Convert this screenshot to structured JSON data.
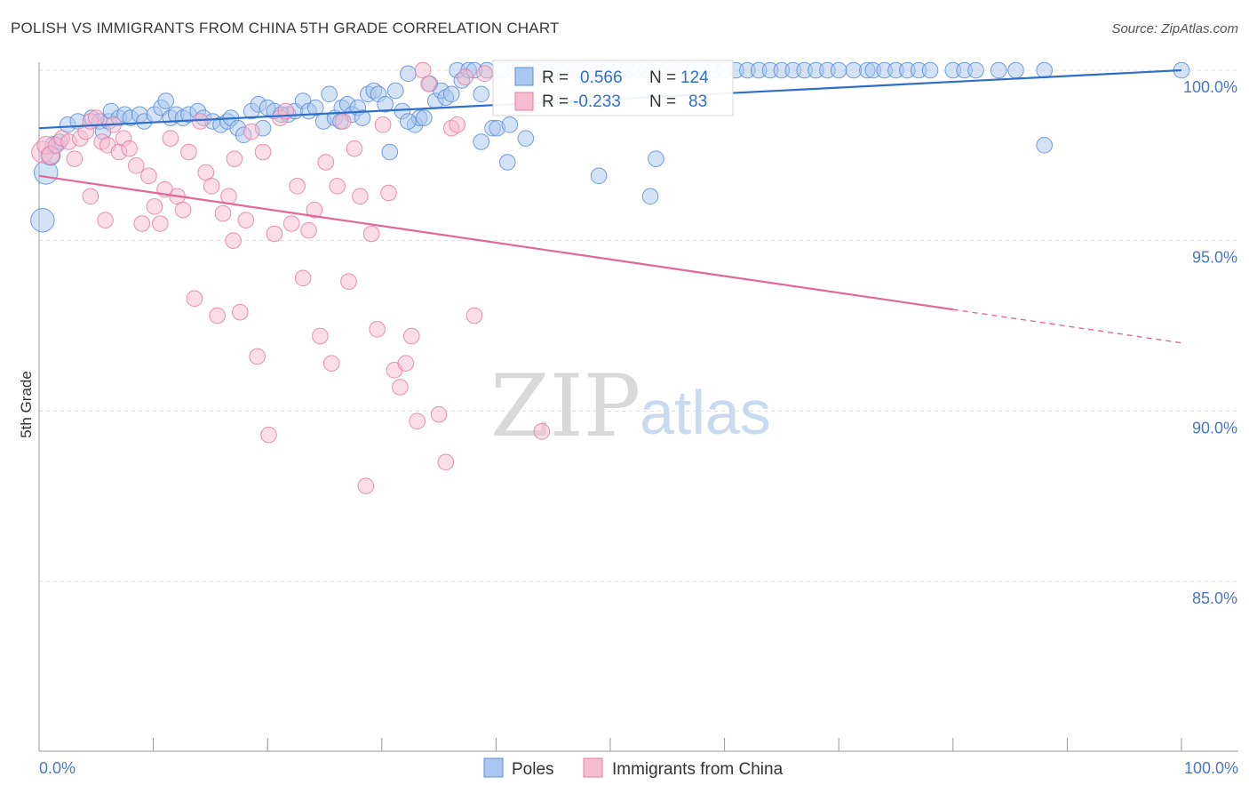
{
  "header": {
    "title": "POLISH VS IMMIGRANTS FROM CHINA 5TH GRADE CORRELATION CHART",
    "source": "Source: ZipAtlas.com"
  },
  "watermark": {
    "zip": "ZIP",
    "atlas": "atlas"
  },
  "colors": {
    "blue": "#5b8fd8",
    "blue_fill": "#a9c6ee",
    "blue_line": "#2f6fcc",
    "pink": "#e57fa4",
    "pink_fill": "#f5bcd0",
    "pink_line": "#e2679a",
    "tick_label": "#4a78c2",
    "grid": "#dddddd"
  },
  "chart_data": {
    "type": "scatter",
    "title": "POLISH VS IMMIGRANTS FROM CHINA 5TH GRADE CORRELATION CHART",
    "xlabel": "",
    "ylabel": "5th Grade",
    "xlim": [
      0,
      100
    ],
    "ylim": [
      80.5,
      100.8
    ],
    "x_tick_labels": [
      "0.0%",
      "100.0%"
    ],
    "y_ticks": [
      {
        "value": 100,
        "label": "100.0%"
      },
      {
        "value": 95,
        "label": "95.0%"
      },
      {
        "value": 90,
        "label": "90.0%"
      },
      {
        "value": 85,
        "label": "85.0%"
      }
    ],
    "legend": {
      "position": "top-center",
      "rows": [
        {
          "r_label": "R = ",
          "r_value": "0.566",
          "n_label": "N = ",
          "n_value": "124"
        },
        {
          "r_label": "R = ",
          "r_value": "-0.233",
          "n_label": "N = ",
          "n_value": "83"
        }
      ]
    },
    "bottom_legend": [
      "Poles",
      "Immigrants from China"
    ],
    "series": [
      {
        "name": "Poles",
        "color": "#5b8fd8",
        "R": 0.566,
        "N": 124,
        "trend": {
          "x0": 0,
          "y0": 98.3,
          "x1": 100,
          "y1": 100.0,
          "solid_to": 100
        },
        "points": [
          [
            0.3,
            95.6,
            12
          ],
          [
            0.6,
            97.0,
            12
          ],
          [
            1.0,
            97.5,
            10
          ],
          [
            1.3,
            97.8,
            9
          ],
          [
            1.8,
            97.9,
            8
          ],
          [
            2.5,
            98.4,
            8
          ],
          [
            3.4,
            98.5,
            8
          ],
          [
            4.6,
            98.6,
            8
          ],
          [
            5.3,
            98.5,
            8
          ],
          [
            5.6,
            98.2,
            8
          ],
          [
            6.1,
            98.5,
            8
          ],
          [
            6.3,
            98.8,
            8
          ],
          [
            7.0,
            98.6,
            8
          ],
          [
            7.5,
            98.7,
            8
          ],
          [
            8.0,
            98.6,
            8
          ],
          [
            8.8,
            98.7,
            8
          ],
          [
            9.2,
            98.5,
            8
          ],
          [
            10.1,
            98.7,
            8
          ],
          [
            10.7,
            98.9,
            8
          ],
          [
            11.1,
            99.1,
            8
          ],
          [
            11.5,
            98.6,
            8
          ],
          [
            12.0,
            98.7,
            8
          ],
          [
            12.6,
            98.6,
            8
          ],
          [
            13.1,
            98.7,
            8
          ],
          [
            13.9,
            98.8,
            8
          ],
          [
            14.4,
            98.6,
            8
          ],
          [
            15.2,
            98.5,
            8
          ],
          [
            15.9,
            98.4,
            8
          ],
          [
            16.5,
            98.5,
            8
          ],
          [
            16.8,
            98.6,
            8
          ],
          [
            17.4,
            98.3,
            8
          ],
          [
            17.9,
            98.1,
            8
          ],
          [
            18.6,
            98.8,
            8
          ],
          [
            19.2,
            99.0,
            8
          ],
          [
            19.6,
            98.3,
            8
          ],
          [
            20.0,
            98.9,
            8
          ],
          [
            20.6,
            98.8,
            8
          ],
          [
            21.2,
            98.7,
            8
          ],
          [
            21.8,
            98.7,
            8
          ],
          [
            22.4,
            98.8,
            8
          ],
          [
            23.1,
            99.1,
            8
          ],
          [
            23.6,
            98.8,
            8
          ],
          [
            24.2,
            98.9,
            8
          ],
          [
            24.9,
            98.5,
            8
          ],
          [
            25.4,
            99.3,
            8
          ],
          [
            25.9,
            98.6,
            8
          ],
          [
            26.5,
            98.9,
            8
          ],
          [
            27.0,
            99.0,
            8
          ],
          [
            27.4,
            98.7,
            8
          ],
          [
            27.9,
            98.9,
            8
          ],
          [
            28.3,
            98.6,
            8
          ],
          [
            28.8,
            99.3,
            8
          ],
          [
            29.3,
            99.4,
            8
          ],
          [
            29.7,
            99.3,
            8
          ],
          [
            30.3,
            99.0,
            8
          ],
          [
            30.7,
            97.6,
            8
          ],
          [
            31.2,
            99.4,
            8
          ],
          [
            31.8,
            98.8,
            8
          ],
          [
            32.3,
            99.9,
            8
          ],
          [
            32.9,
            98.4,
            8
          ],
          [
            33.3,
            98.6,
            8
          ],
          [
            33.7,
            98.6,
            8
          ],
          [
            34.2,
            99.6,
            8
          ],
          [
            34.7,
            99.1,
            8
          ],
          [
            35.2,
            99.4,
            8
          ],
          [
            35.6,
            99.2,
            8
          ],
          [
            36.1,
            99.3,
            8
          ],
          [
            36.6,
            100.0,
            8
          ],
          [
            37.0,
            99.7,
            8
          ],
          [
            37.6,
            100.0,
            8
          ],
          [
            38.1,
            100.0,
            8
          ],
          [
            38.7,
            99.3,
            8
          ],
          [
            39.2,
            100.0,
            8
          ],
          [
            39.7,
            98.3,
            8
          ],
          [
            40.1,
            98.3,
            8
          ],
          [
            40.6,
            100.0,
            8
          ],
          [
            41.2,
            98.4,
            8
          ],
          [
            41.6,
            100.0,
            8
          ],
          [
            42.1,
            100.0,
            8
          ],
          [
            42.6,
            98.0,
            8
          ],
          [
            43.4,
            100.0,
            8
          ],
          [
            44.2,
            100.0,
            8
          ],
          [
            44.8,
            100.0,
            8
          ],
          [
            45.5,
            100.0,
            8
          ],
          [
            46.2,
            100.0,
            8
          ],
          [
            47.0,
            100.0,
            8
          ],
          [
            47.6,
            100.0,
            8
          ],
          [
            48.3,
            100.0,
            8
          ],
          [
            49.0,
            100.0,
            8
          ],
          [
            49.8,
            100.0,
            8
          ],
          [
            50.8,
            100.0,
            8
          ],
          [
            51.5,
            100.0,
            8
          ],
          [
            52.4,
            100.0,
            8
          ],
          [
            53.2,
            100.0,
            8
          ],
          [
            54.0,
            97.4,
            8
          ],
          [
            55.0,
            100.0,
            8
          ],
          [
            55.8,
            100.0,
            8
          ],
          [
            56.6,
            100.0,
            8
          ],
          [
            57.4,
            100.0,
            8
          ],
          [
            58.1,
            100.0,
            8
          ],
          [
            59.0,
            100.0,
            8
          ],
          [
            60.0,
            100.0,
            8
          ],
          [
            61.0,
            100.0,
            8
          ],
          [
            62.0,
            100.0,
            8
          ],
          [
            63.0,
            100.0,
            8
          ],
          [
            64.0,
            100.0,
            8
          ],
          [
            65.0,
            100.0,
            8
          ],
          [
            66.0,
            100.0,
            8
          ],
          [
            67.0,
            100.0,
            8
          ],
          [
            68.0,
            100.0,
            8
          ],
          [
            69.0,
            100.0,
            8
          ],
          [
            70.0,
            100.0,
            8
          ],
          [
            71.3,
            100.0,
            8
          ],
          [
            72.5,
            100.0,
            8
          ],
          [
            73.0,
            100.0,
            8
          ],
          [
            74.0,
            100.0,
            8
          ],
          [
            75.0,
            100.0,
            8
          ],
          [
            76.0,
            100.0,
            8
          ],
          [
            77.0,
            100.0,
            8
          ],
          [
            78.0,
            100.0,
            8
          ],
          [
            80.0,
            100.0,
            8
          ],
          [
            81.0,
            100.0,
            8
          ],
          [
            82.0,
            100.0,
            8
          ],
          [
            84.0,
            100.0,
            8
          ],
          [
            85.5,
            100.0,
            8
          ],
          [
            88.0,
            100.0,
            8
          ],
          [
            100.0,
            100.0,
            8
          ],
          [
            88.0,
            97.8,
            8
          ],
          [
            49.0,
            96.9,
            8
          ],
          [
            53.5,
            96.3,
            8
          ],
          [
            41.0,
            97.3,
            8
          ],
          [
            38.7,
            97.9,
            8
          ],
          [
            26.4,
            98.5,
            8
          ],
          [
            32.3,
            98.5,
            8
          ]
        ]
      },
      {
        "name": "Immigrants from China",
        "color": "#e57fa4",
        "R": -0.233,
        "N": 83,
        "trend": {
          "x0": 0,
          "y0": 96.9,
          "x1": 100,
          "y1": 92.0,
          "solid_to": 80
        },
        "points": [
          [
            0.3,
            97.6,
            11
          ],
          [
            0.6,
            97.8,
            9
          ],
          [
            1.0,
            97.5,
            9
          ],
          [
            1.5,
            97.8,
            8
          ],
          [
            2.0,
            98.0,
            8
          ],
          [
            2.6,
            97.9,
            8
          ],
          [
            3.1,
            97.4,
            8
          ],
          [
            3.6,
            98.0,
            8
          ],
          [
            4.1,
            98.2,
            8
          ],
          [
            4.5,
            98.5,
            8
          ],
          [
            5.0,
            98.6,
            8
          ],
          [
            5.5,
            97.9,
            8
          ],
          [
            6.0,
            97.8,
            8
          ],
          [
            6.5,
            98.4,
            8
          ],
          [
            7.0,
            97.6,
            8
          ],
          [
            7.4,
            98.0,
            8
          ],
          [
            7.9,
            97.7,
            8
          ],
          [
            8.5,
            97.2,
            8
          ],
          [
            9.0,
            95.5,
            8
          ],
          [
            9.6,
            96.9,
            8
          ],
          [
            10.1,
            96.0,
            8
          ],
          [
            10.6,
            95.5,
            8
          ],
          [
            11.0,
            96.5,
            8
          ],
          [
            11.5,
            98.0,
            8
          ],
          [
            12.1,
            96.3,
            8
          ],
          [
            12.6,
            95.9,
            8
          ],
          [
            13.1,
            97.6,
            8
          ],
          [
            13.6,
            93.3,
            8
          ],
          [
            14.1,
            98.5,
            8
          ],
          [
            14.6,
            97.0,
            8
          ],
          [
            15.1,
            96.6,
            8
          ],
          [
            15.6,
            92.8,
            8
          ],
          [
            16.1,
            95.8,
            8
          ],
          [
            16.6,
            96.3,
            8
          ],
          [
            17.1,
            97.4,
            8
          ],
          [
            17.6,
            92.9,
            8
          ],
          [
            18.1,
            95.6,
            8
          ],
          [
            18.6,
            98.2,
            8
          ],
          [
            19.1,
            91.6,
            8
          ],
          [
            19.6,
            97.6,
            8
          ],
          [
            20.1,
            89.3,
            8
          ],
          [
            20.6,
            95.2,
            8
          ],
          [
            21.1,
            98.6,
            8
          ],
          [
            21.6,
            98.8,
            8
          ],
          [
            22.1,
            95.5,
            8
          ],
          [
            22.6,
            96.6,
            8
          ],
          [
            23.1,
            93.9,
            8
          ],
          [
            23.6,
            95.3,
            8
          ],
          [
            24.1,
            95.9,
            8
          ],
          [
            24.6,
            92.2,
            8
          ],
          [
            25.1,
            97.3,
            8
          ],
          [
            25.6,
            91.4,
            8
          ],
          [
            26.1,
            96.6,
            8
          ],
          [
            26.6,
            98.5,
            8
          ],
          [
            27.1,
            93.8,
            8
          ],
          [
            27.6,
            97.7,
            8
          ],
          [
            28.1,
            96.3,
            8
          ],
          [
            28.6,
            87.8,
            8
          ],
          [
            29.1,
            95.2,
            8
          ],
          [
            29.6,
            92.4,
            8
          ],
          [
            30.1,
            98.4,
            8
          ],
          [
            30.6,
            96.4,
            8
          ],
          [
            31.1,
            91.2,
            8
          ],
          [
            31.6,
            90.7,
            8
          ],
          [
            32.1,
            91.4,
            8
          ],
          [
            32.6,
            92.2,
            8
          ],
          [
            33.1,
            89.7,
            8
          ],
          [
            33.6,
            100.0,
            8
          ],
          [
            34.1,
            99.6,
            8
          ],
          [
            35.0,
            89.9,
            8
          ],
          [
            35.6,
            88.5,
            8
          ],
          [
            36.1,
            98.3,
            8
          ],
          [
            36.6,
            98.4,
            8
          ],
          [
            37.3,
            99.8,
            8
          ],
          [
            38.1,
            92.8,
            8
          ],
          [
            39.0,
            99.9,
            8
          ],
          [
            44.0,
            89.4,
            8
          ],
          [
            47.0,
            100.0,
            8
          ],
          [
            49.0,
            99.9,
            8
          ],
          [
            56.0,
            100.0,
            8
          ],
          [
            5.8,
            95.6,
            8
          ],
          [
            4.5,
            96.3,
            8
          ],
          [
            17.0,
            95.0,
            8
          ]
        ]
      }
    ]
  }
}
